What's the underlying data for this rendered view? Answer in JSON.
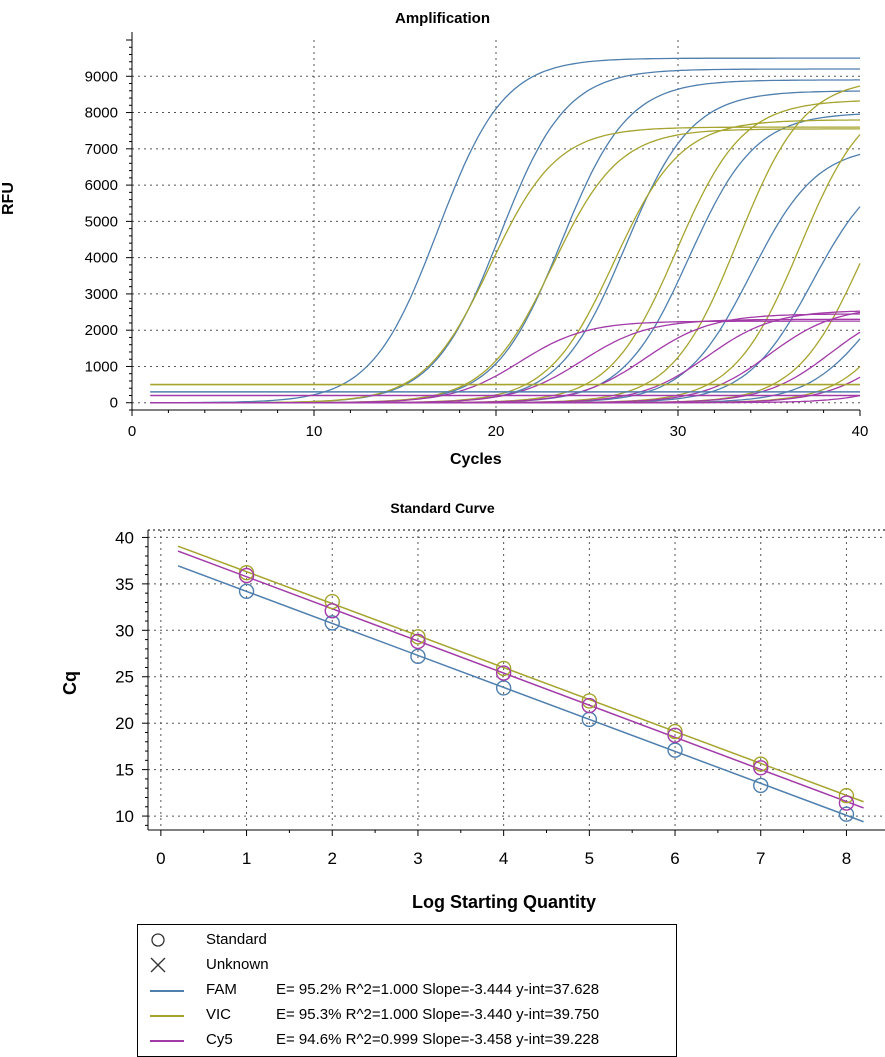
{
  "colors": {
    "FAM": "#4f7fae",
    "VIC": "#a6a42e",
    "Cy5": "#a23aa8"
  },
  "chart_data": [
    {
      "type": "line",
      "title": "Amplification",
      "xlabel": "Cycles",
      "ylabel": "RFU",
      "xlim": [
        0,
        40
      ],
      "ylim": [
        -200,
        10000
      ],
      "xticks": [
        "0",
        "10",
        "20",
        "30",
        "40"
      ],
      "yticks": [
        "0",
        "1000",
        "2000",
        "3000",
        "4000",
        "5000",
        "6000",
        "7000",
        "8000",
        "9000"
      ],
      "grid": "dotted",
      "x_range_data": [
        1,
        40
      ],
      "series": [
        {
          "dye": "FAM",
          "ct": 13.3,
          "plateau": 9500,
          "baseline": 300
        },
        {
          "dye": "FAM",
          "ct": 16.7,
          "plateau": 9200,
          "baseline": 300
        },
        {
          "dye": "FAM",
          "ct": 20.1,
          "plateau": 8900,
          "baseline": 300
        },
        {
          "dye": "FAM",
          "ct": 23.6,
          "plateau": 8600,
          "baseline": 300
        },
        {
          "dye": "FAM",
          "ct": 27.1,
          "plateau": 8000,
          "baseline": 300
        },
        {
          "dye": "FAM",
          "ct": 30.5,
          "plateau": 7100,
          "baseline": 300
        },
        {
          "dye": "FAM",
          "ct": 33.9,
          "plateau": 6700,
          "baseline": 300
        },
        {
          "dye": "FAM",
          "ct": 37.3,
          "plateau": 4500,
          "baseline": 300
        },
        {
          "dye": "VIC",
          "ct": 16.2,
          "plateau": 7600,
          "baseline": 500
        },
        {
          "dye": "VIC",
          "ct": 19.6,
          "plateau": 7550,
          "baseline": 500
        },
        {
          "dye": "VIC",
          "ct": 23.0,
          "plateau": 7800,
          "baseline": 500
        },
        {
          "dye": "VIC",
          "ct": 26.4,
          "plateau": 8350,
          "baseline": 500
        },
        {
          "dye": "VIC",
          "ct": 29.8,
          "plateau": 8950,
          "baseline": 500
        },
        {
          "dye": "VIC",
          "ct": 33.2,
          "plateau": 8600,
          "baseline": 500
        },
        {
          "dye": "VIC",
          "ct": 36.6,
          "plateau": 7900,
          "baseline": 500
        },
        {
          "dye": "VIC",
          "ct": 39.7,
          "plateau": 6800,
          "baseline": 500
        },
        {
          "dye": "Cy5",
          "ct": 17.8,
          "plateau": 2250,
          "baseline": 200
        },
        {
          "dye": "Cy5",
          "ct": 21.2,
          "plateau": 2300,
          "baseline": 200
        },
        {
          "dye": "Cy5",
          "ct": 24.7,
          "plateau": 2450,
          "baseline": 200
        },
        {
          "dye": "Cy5",
          "ct": 28.1,
          "plateau": 2550,
          "baseline": 200
        },
        {
          "dye": "Cy5",
          "ct": 31.5,
          "plateau": 2650,
          "baseline": 200
        },
        {
          "dye": "Cy5",
          "ct": 34.9,
          "plateau": 2750,
          "baseline": 200
        },
        {
          "dye": "Cy5",
          "ct": 38.3,
          "plateau": 2600,
          "baseline": 200
        },
        {
          "dye": "Cy5",
          "ct": 40.8,
          "plateau": 2300,
          "baseline": 200
        }
      ]
    },
    {
      "type": "scatter",
      "title": "Standard Curve",
      "xlabel": "Log Starting Quantity",
      "ylabel": "Cq",
      "xlim": [
        -0.15,
        8.45
      ],
      "ylim": [
        8.5,
        40.8
      ],
      "xticks": [
        "0",
        "1",
        "2",
        "3",
        "4",
        "5",
        "6",
        "7",
        "8"
      ],
      "yticks": [
        "10",
        "15",
        "20",
        "25",
        "30",
        "35",
        "40"
      ],
      "grid": "dotted",
      "line_x_range": [
        0.2,
        8.2
      ],
      "series": [
        {
          "name": "FAM",
          "slope": -3.444,
          "intercept": 37.628,
          "x": [
            1,
            2,
            3,
            4,
            5,
            6,
            7,
            8
          ],
          "y": [
            34.2,
            30.8,
            27.2,
            23.8,
            20.4,
            17.1,
            13.3,
            10.2
          ]
        },
        {
          "name": "VIC",
          "slope": -3.44,
          "intercept": 39.75,
          "x": [
            1,
            2,
            3,
            4,
            5,
            6,
            7,
            8
          ],
          "y": [
            36.2,
            33.1,
            29.3,
            25.9,
            22.4,
            19.1,
            15.6,
            12.2
          ]
        },
        {
          "name": "Cy5",
          "slope": -3.458,
          "intercept": 39.228,
          "x": [
            1,
            2,
            3,
            4,
            5,
            6,
            7,
            8
          ],
          "y": [
            35.9,
            32.1,
            28.8,
            25.4,
            21.9,
            18.7,
            15.2,
            11.4
          ]
        }
      ]
    }
  ],
  "legend": {
    "standard": "Standard",
    "unknown": "Unknown",
    "entries": [
      {
        "name": "FAM",
        "stats": "E= 95.2% R^2=1.000 Slope=-3.444 y-int=37.628"
      },
      {
        "name": "VIC",
        "stats": "E= 95.3% R^2=1.000 Slope=-3.440 y-int=39.750"
      },
      {
        "name": "Cy5",
        "stats": "E= 94.6% R^2=0.999 Slope=-3.458 y-int=39.228"
      }
    ]
  }
}
